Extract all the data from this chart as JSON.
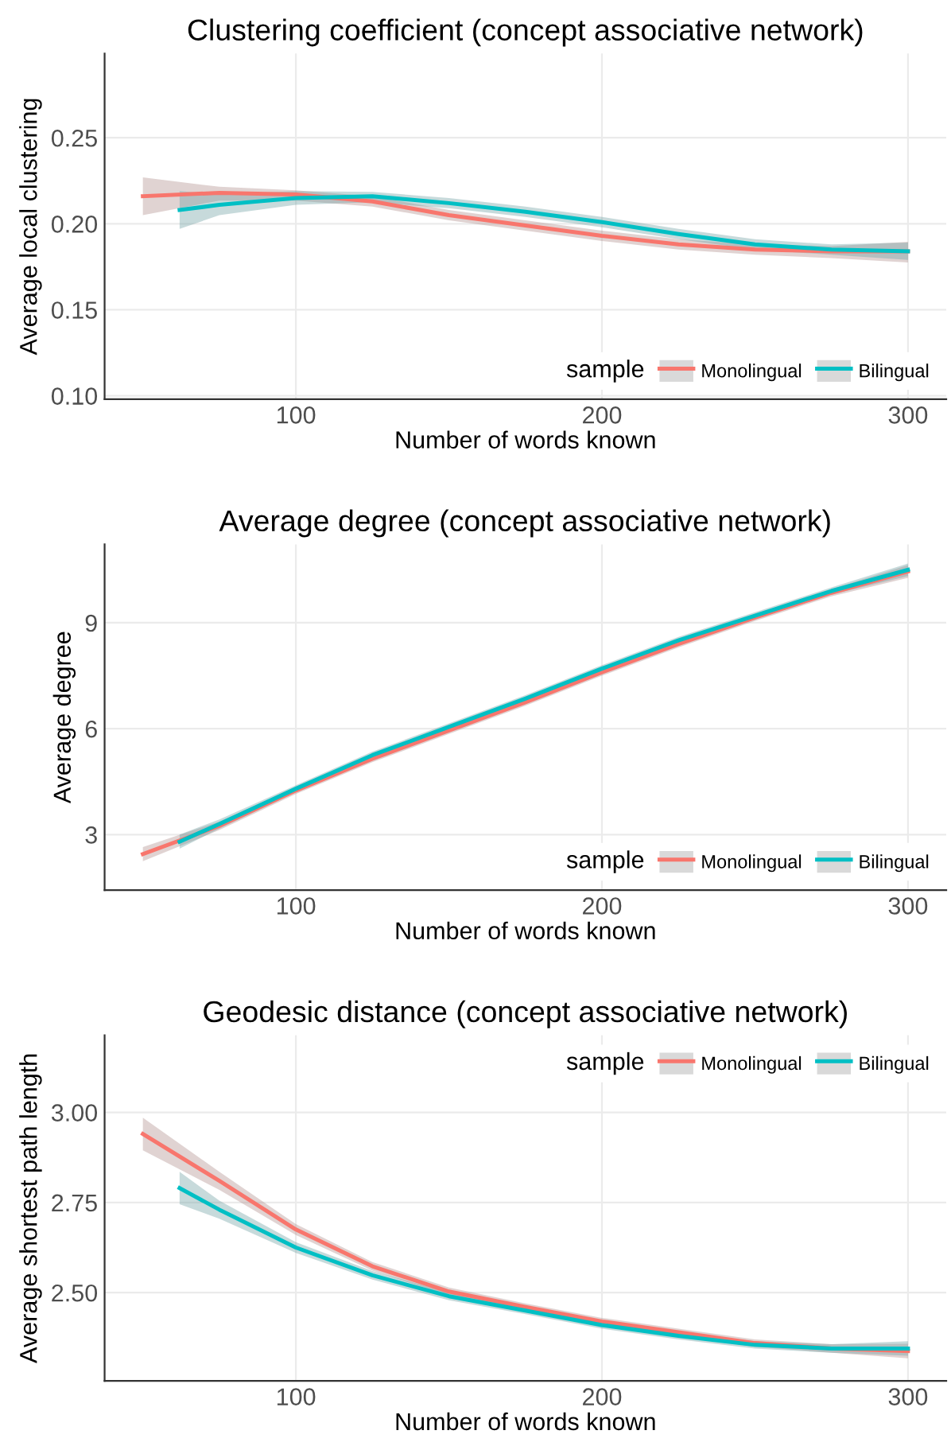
{
  "chart_data": [
    {
      "type": "line",
      "title": "Clustering coefficient (concept associative network)",
      "xlabel": "Number of words known",
      "ylabel": "Average local clustering",
      "legend_title": "sample",
      "legend": "bottom right",
      "grid": true,
      "xlim": [
        37.5,
        312.5
      ],
      "xticks": [
        100,
        200,
        300
      ],
      "ylim": [
        0.098,
        0.299
      ],
      "yticks": [
        {
          "value": 0.1,
          "label": "0.10"
        },
        0.15,
        {
          "value": 0.2,
          "label": "0.20"
        },
        0.25
      ],
      "series": [
        {
          "name": "Monolingual",
          "color": "#f8766d",
          "x": [
            50,
            75,
            100,
            125,
            150,
            175,
            200,
            225,
            250,
            275,
            300
          ],
          "values": [
            0.216,
            0.218,
            0.217,
            0.213,
            0.205,
            0.199,
            0.193,
            0.188,
            0.185,
            0.184,
            0.184
          ],
          "lower": [
            0.205,
            0.2135,
            0.2135,
            0.21,
            0.202,
            0.196,
            0.19,
            0.185,
            0.182,
            0.18,
            0.1775
          ],
          "upper": [
            0.227,
            0.2215,
            0.2195,
            0.216,
            0.208,
            0.202,
            0.196,
            0.191,
            0.188,
            0.187,
            0.1895
          ]
        },
        {
          "name": "Bilingual",
          "color": "#00bfc4",
          "x": [
            62,
            75,
            100,
            125,
            150,
            175,
            200,
            225,
            250,
            275,
            300
          ],
          "values": [
            0.208,
            0.211,
            0.215,
            0.216,
            0.212,
            0.207,
            0.201,
            0.194,
            0.188,
            0.185,
            0.184
          ],
          "lower": [
            0.197,
            0.205,
            0.211,
            0.2125,
            0.209,
            0.204,
            0.198,
            0.191,
            0.185,
            0.182,
            0.179
          ],
          "upper": [
            0.219,
            0.217,
            0.219,
            0.2185,
            0.215,
            0.21,
            0.204,
            0.197,
            0.191,
            0.188,
            0.189
          ]
        }
      ]
    },
    {
      "type": "line",
      "title": "Average degree (concept associative network)",
      "xlabel": "Number of words known",
      "ylabel": "Average degree",
      "legend_title": "sample",
      "legend": "bottom right",
      "grid": true,
      "xlim": [
        37.5,
        312.5
      ],
      "xticks": [
        100,
        200,
        300
      ],
      "ylim": [
        1.43,
        11.22
      ],
      "yticks": [
        3,
        6,
        9
      ],
      "series": [
        {
          "name": "Monolingual",
          "color": "#f8766d",
          "x": [
            50,
            75,
            100,
            125,
            150,
            175,
            200,
            225,
            250,
            275,
            300
          ],
          "values": [
            2.45,
            3.25,
            4.25,
            5.15,
            5.95,
            6.75,
            7.6,
            8.4,
            9.15,
            9.85,
            10.45
          ],
          "lower": [
            2.25,
            3.13,
            4.15,
            5.05,
            5.85,
            6.65,
            7.5,
            8.3,
            9.05,
            9.75,
            10.27
          ],
          "upper": [
            2.65,
            3.37,
            4.35,
            5.25,
            6.05,
            6.85,
            7.7,
            8.5,
            9.25,
            9.95,
            10.63
          ]
        },
        {
          "name": "Bilingual",
          "color": "#00bfc4",
          "x": [
            62,
            75,
            100,
            125,
            150,
            175,
            200,
            225,
            250,
            275,
            300
          ],
          "values": [
            2.8,
            3.3,
            4.3,
            5.25,
            6.05,
            6.85,
            7.7,
            8.5,
            9.2,
            9.9,
            10.5
          ],
          "lower": [
            2.6,
            3.17,
            4.2,
            5.15,
            5.95,
            6.75,
            7.6,
            8.4,
            9.1,
            9.8,
            10.32
          ],
          "upper": [
            3.0,
            3.43,
            4.4,
            5.35,
            6.15,
            6.95,
            7.8,
            8.6,
            9.3,
            10.0,
            10.68
          ]
        }
      ]
    },
    {
      "type": "line",
      "title": "Geodesic distance (concept associative network)",
      "xlabel": "Number of words known",
      "ylabel": "Average shortest path length",
      "legend_title": "sample",
      "legend": "top right",
      "grid": true,
      "xlim": [
        37.5,
        312.5
      ],
      "xticks": [
        100,
        200,
        300
      ],
      "ylim": [
        2.255,
        3.214
      ],
      "yticks": [
        {
          "value": 2.5,
          "label": "2.50"
        },
        2.75,
        {
          "value": 3,
          "label": "3.00"
        }
      ],
      "series": [
        {
          "name": "Monolingual",
          "color": "#f8766d",
          "x": [
            50,
            75,
            100,
            125,
            150,
            175,
            200,
            225,
            250,
            275,
            300
          ],
          "values": [
            2.94,
            2.81,
            2.675,
            2.573,
            2.503,
            2.46,
            2.42,
            2.39,
            2.36,
            2.345,
            2.338
          ],
          "lower": [
            2.895,
            2.785,
            2.66,
            2.561,
            2.492,
            2.45,
            2.41,
            2.38,
            2.35,
            2.333,
            2.318
          ],
          "upper": [
            2.985,
            2.835,
            2.69,
            2.585,
            2.514,
            2.47,
            2.43,
            2.4,
            2.37,
            2.357,
            2.358
          ]
        },
        {
          "name": "Bilingual",
          "color": "#00bfc4",
          "x": [
            62,
            75,
            100,
            125,
            150,
            175,
            200,
            225,
            250,
            275,
            300
          ],
          "values": [
            2.79,
            2.73,
            2.625,
            2.548,
            2.49,
            2.45,
            2.41,
            2.38,
            2.355,
            2.345,
            2.345
          ],
          "lower": [
            2.745,
            2.705,
            2.61,
            2.536,
            2.479,
            2.44,
            2.4,
            2.37,
            2.345,
            2.333,
            2.325
          ],
          "upper": [
            2.835,
            2.755,
            2.64,
            2.56,
            2.501,
            2.46,
            2.42,
            2.39,
            2.365,
            2.357,
            2.365
          ]
        }
      ]
    }
  ]
}
